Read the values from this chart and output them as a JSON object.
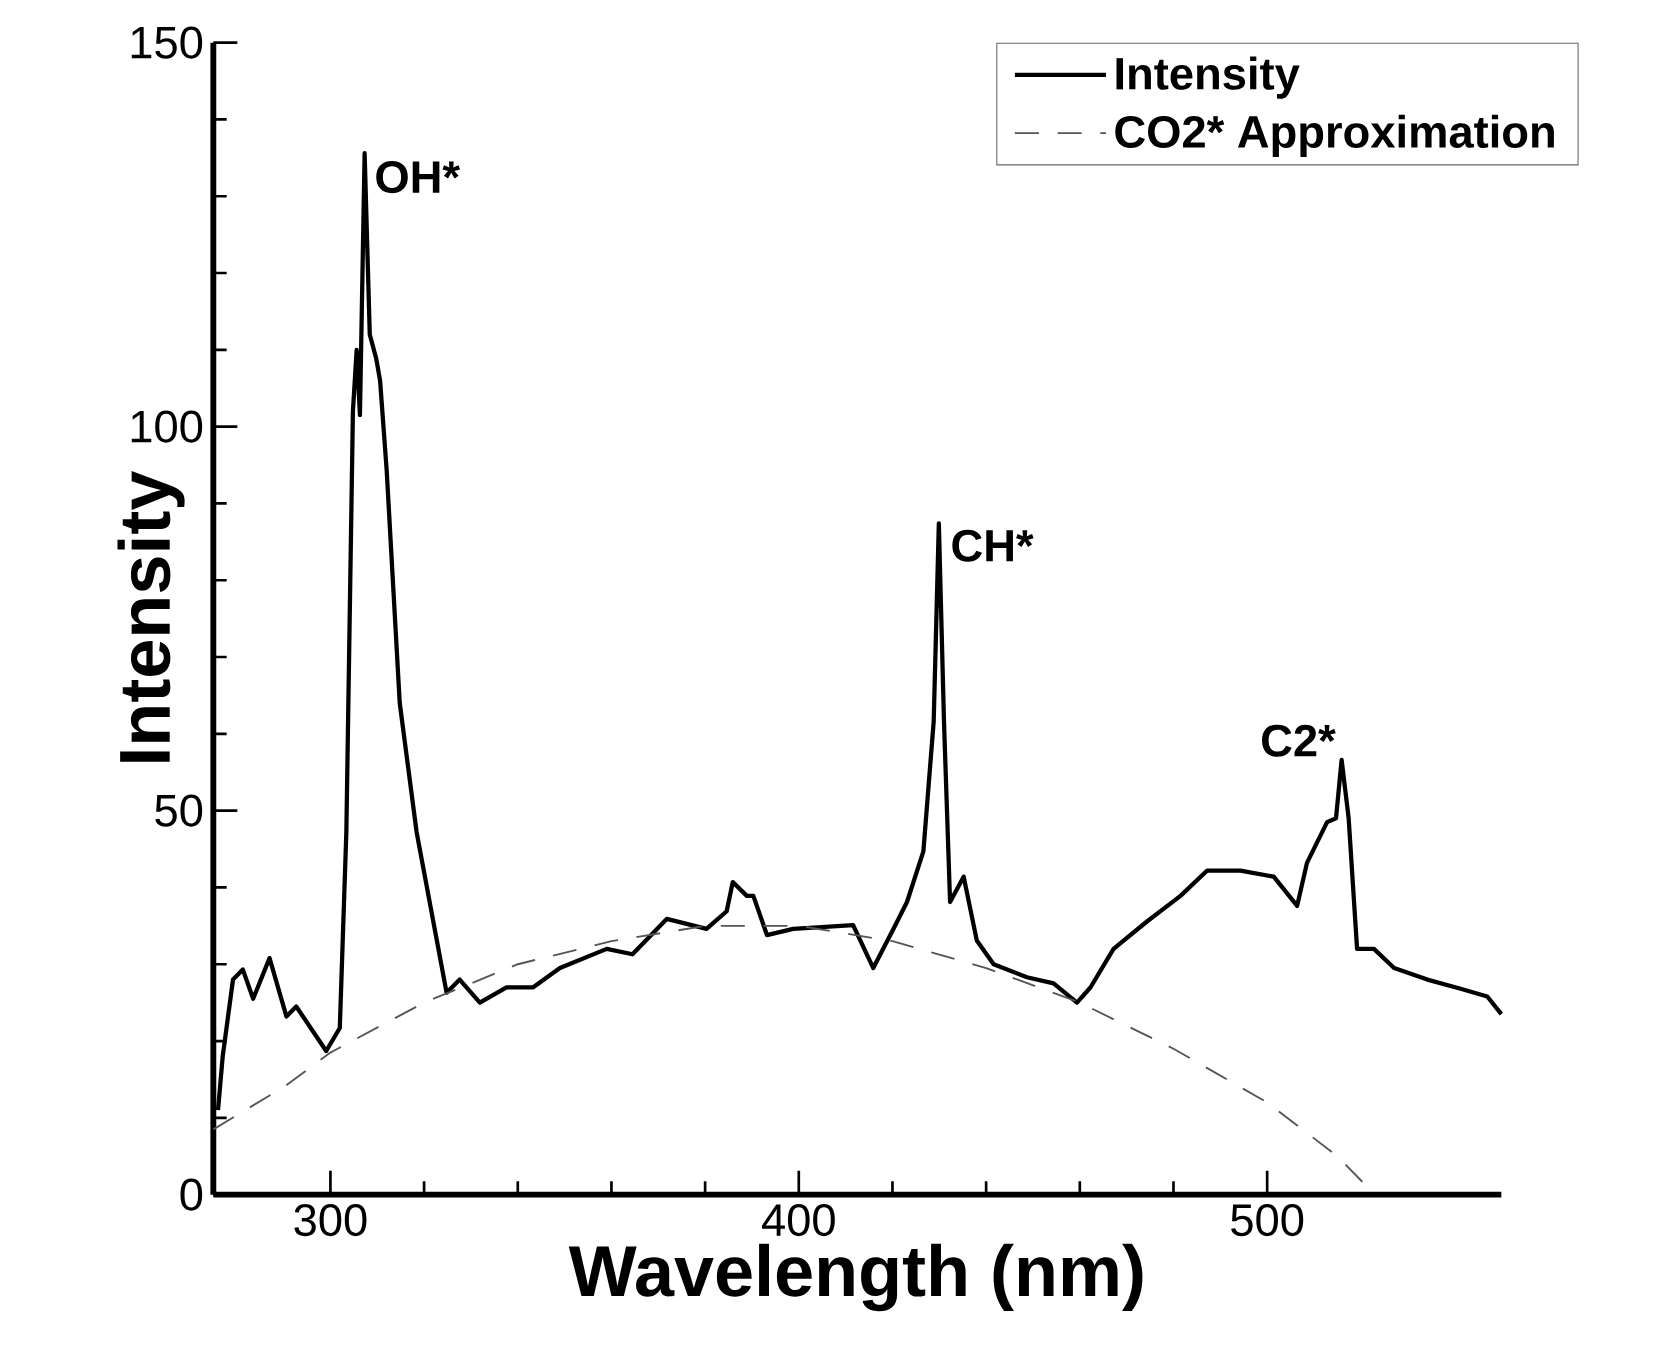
{
  "chart_data": {
    "type": "line",
    "xlabel": "Wavelength (nm)",
    "ylabel": "Intensity",
    "xlim": [
      275,
      550
    ],
    "ylim": [
      0,
      150
    ],
    "xticks": [
      300,
      400,
      500
    ],
    "yticks": [
      0,
      50,
      100,
      150
    ],
    "legend": "top right",
    "grid": false,
    "annotations": [
      {
        "text": "OH*",
        "x": 307,
        "y": 135
      },
      {
        "text": "CH*",
        "x": 430,
        "y": 87
      },
      {
        "text": "C2*",
        "x": 515.9,
        "y": 56.6
      }
    ],
    "series": [
      {
        "name": "Intensity",
        "color": "#000000",
        "line_style": "solid",
        "x": [
          276,
          277,
          279.2,
          281.3,
          283.5,
          287,
          290.6,
          292.7,
          299.1,
          302,
          303.4,
          304.8,
          305.6,
          306.3,
          307.3,
          308.4,
          309.8,
          310.6,
          312,
          314.8,
          318.4,
          324.8,
          327.6,
          331.9,
          337.6,
          343.3,
          349,
          359,
          364.5,
          371.8,
          380.3,
          384.6,
          385.9,
          388.9,
          390.3,
          393.2,
          398.8,
          411.6,
          415.9,
          420.2,
          423.1,
          426.6,
          428.8,
          429.9,
          431,
          432.3,
          435.2,
          438,
          441.6,
          448.7,
          454.4,
          459.4,
          462.3,
          467.2,
          474.4,
          481.5,
          487.2,
          494.3,
          501.4,
          506.4,
          508.5,
          512.8,
          514.7,
          515.9,
          517.4,
          519.2,
          522.8,
          527.1,
          534.2,
          541.3,
          547,
          550
        ],
        "values": [
          11,
          18,
          28,
          29.3,
          25.5,
          30.8,
          23.2,
          24.5,
          18.7,
          21.7,
          47.2,
          102,
          110,
          101.5,
          135.6,
          112,
          108.8,
          106,
          94.4,
          64,
          47.2,
          26.3,
          28,
          25,
          27,
          27,
          29.5,
          32,
          31.3,
          35.9,
          34.6,
          36.9,
          40.7,
          38.9,
          38.9,
          33.8,
          34.6,
          35.1,
          29.5,
          34.6,
          38.1,
          44.7,
          61.6,
          87.4,
          61.6,
          38.1,
          41.4,
          33.1,
          30,
          28.3,
          27.5,
          25,
          27,
          32,
          35.6,
          38.9,
          42.2,
          42.2,
          41.4,
          37.6,
          43.2,
          48.5,
          49,
          56.6,
          49,
          32,
          32,
          29.5,
          28,
          26.8,
          25.8,
          23.5
        ]
      },
      {
        "name": "CO2* Approximation",
        "color": "#555555",
        "line_style": "dashed",
        "x": [
          275,
          290,
          300,
          320,
          340,
          360,
          380,
          400,
          420,
          440,
          460,
          480,
          500,
          515,
          523
        ],
        "values": [
          8.5,
          14,
          18.5,
          25,
          30,
          33,
          35,
          35,
          33,
          29.5,
          25,
          19,
          12,
          5,
          0
        ]
      }
    ]
  }
}
